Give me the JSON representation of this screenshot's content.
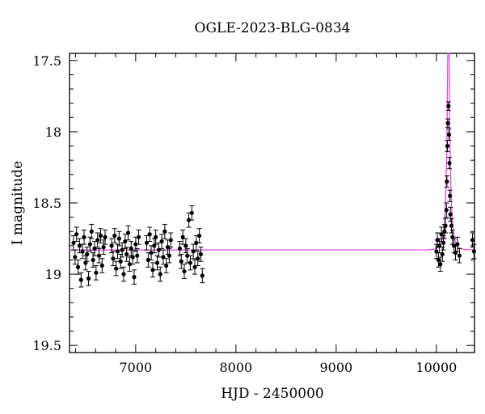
{
  "chart_data": {
    "type": "scatter",
    "title": "OGLE-2023-BLG-0834",
    "xlabel": "HJD - 2450000",
    "ylabel": "I magnitude",
    "xlim": [
      6340,
      10380
    ],
    "ylim": [
      19.55,
      17.45
    ],
    "y_inverted": true,
    "x_ticks": [
      7000,
      8000,
      9000,
      10000
    ],
    "y_ticks": [
      17.5,
      18,
      18.5,
      19,
      19.5
    ],
    "x_tick_labels": [
      "7000",
      "8000",
      "9000",
      "10000"
    ],
    "y_tick_labels": [
      "17.5",
      "18",
      "18.5",
      "19",
      "19.5"
    ],
    "grid": false,
    "colors": {
      "points": "#000000",
      "model": "#e040e0",
      "frame": "#000000"
    },
    "model": {
      "name": "",
      "baseline": 18.83,
      "t0": 10120,
      "u0": 0.06,
      "tE": 40,
      "fs": 0.6
    },
    "series": [
      {
        "name": "",
        "style": "points-with-errorbars",
        "points": [
          [
            6380,
            18.78,
            0.05
          ],
          [
            6395,
            18.88,
            0.05
          ],
          [
            6410,
            18.72,
            0.05
          ],
          [
            6425,
            18.95,
            0.05
          ],
          [
            6440,
            18.8,
            0.05
          ],
          [
            6455,
            19.04,
            0.05
          ],
          [
            6470,
            18.84,
            0.05
          ],
          [
            6485,
            18.74,
            0.05
          ],
          [
            6500,
            18.92,
            0.05
          ],
          [
            6515,
            18.86,
            0.05
          ],
          [
            6530,
            19.03,
            0.05
          ],
          [
            6545,
            18.79,
            0.05
          ],
          [
            6560,
            18.7,
            0.05
          ],
          [
            6575,
            18.9,
            0.05
          ],
          [
            6590,
            18.82,
            0.05
          ],
          [
            6605,
            18.99,
            0.05
          ],
          [
            6620,
            18.76,
            0.05
          ],
          [
            6635,
            18.87,
            0.05
          ],
          [
            6650,
            18.73,
            0.05
          ],
          [
            6665,
            18.94,
            0.05
          ],
          [
            6680,
            18.81,
            0.05
          ],
          [
            6695,
            18.74,
            0.05
          ],
          [
            6760,
            18.8,
            0.05
          ],
          [
            6775,
            18.89,
            0.05
          ],
          [
            6790,
            18.73,
            0.05
          ],
          [
            6805,
            18.96,
            0.05
          ],
          [
            6820,
            18.84,
            0.05
          ],
          [
            6835,
            18.75,
            0.05
          ],
          [
            6850,
            18.91,
            0.05
          ],
          [
            6865,
            18.83,
            0.05
          ],
          [
            6880,
            19.0,
            0.05
          ],
          [
            6895,
            18.77,
            0.05
          ],
          [
            6910,
            18.86,
            0.05
          ],
          [
            6925,
            18.71,
            0.05
          ],
          [
            6940,
            18.93,
            0.05
          ],
          [
            6955,
            18.82,
            0.05
          ],
          [
            6970,
            18.88,
            0.05
          ],
          [
            6985,
            19.02,
            0.05
          ],
          [
            7000,
            18.79,
            0.05
          ],
          [
            7015,
            18.87,
            0.05
          ],
          [
            7030,
            18.74,
            0.05
          ],
          [
            7110,
            18.78,
            0.05
          ],
          [
            7125,
            18.9,
            0.05
          ],
          [
            7140,
            18.72,
            0.05
          ],
          [
            7155,
            18.85,
            0.05
          ],
          [
            7170,
            18.97,
            0.05
          ],
          [
            7185,
            18.8,
            0.05
          ],
          [
            7200,
            18.74,
            0.05
          ],
          [
            7215,
            18.92,
            0.05
          ],
          [
            7230,
            18.83,
            0.05
          ],
          [
            7245,
            19.0,
            0.05
          ],
          [
            7260,
            18.77,
            0.05
          ],
          [
            7275,
            18.88,
            0.05
          ],
          [
            7290,
            18.7,
            0.05
          ],
          [
            7305,
            18.94,
            0.05
          ],
          [
            7320,
            18.81,
            0.05
          ],
          [
            7335,
            18.87,
            0.05
          ],
          [
            7350,
            18.76,
            0.05
          ],
          [
            7440,
            18.82,
            0.05
          ],
          [
            7455,
            18.91,
            0.05
          ],
          [
            7470,
            18.74,
            0.05
          ],
          [
            7485,
            18.98,
            0.05
          ],
          [
            7500,
            18.8,
            0.05
          ],
          [
            7515,
            18.87,
            0.05
          ],
          [
            7530,
            18.62,
            0.05
          ],
          [
            7545,
            18.92,
            0.05
          ],
          [
            7560,
            18.57,
            0.05
          ],
          [
            7575,
            18.84,
            0.05
          ],
          [
            7590,
            18.95,
            0.05
          ],
          [
            7605,
            18.78,
            0.05
          ],
          [
            7620,
            18.89,
            0.05
          ],
          [
            7635,
            18.73,
            0.05
          ],
          [
            7650,
            18.86,
            0.05
          ],
          [
            7665,
            19.01,
            0.05
          ],
          [
            10000,
            18.84,
            0.05
          ],
          [
            10010,
            18.76,
            0.05
          ],
          [
            10020,
            18.9,
            0.05
          ],
          [
            10030,
            18.8,
            0.05
          ],
          [
            10040,
            18.93,
            0.05
          ],
          [
            10050,
            18.72,
            0.05
          ],
          [
            10060,
            18.86,
            0.05
          ],
          [
            10070,
            18.78,
            0.05
          ],
          [
            10080,
            18.7,
            0.05
          ],
          [
            10090,
            18.66,
            0.05
          ],
          [
            10100,
            18.55,
            0.05
          ],
          [
            10105,
            18.35,
            0.04
          ],
          [
            10110,
            18.1,
            0.04
          ],
          [
            10115,
            17.94,
            0.03
          ],
          [
            10120,
            17.82,
            0.03
          ],
          [
            10125,
            18.02,
            0.04
          ],
          [
            10130,
            18.22,
            0.04
          ],
          [
            10135,
            18.45,
            0.04
          ],
          [
            10140,
            18.58,
            0.05
          ],
          [
            10150,
            18.66,
            0.05
          ],
          [
            10160,
            18.74,
            0.05
          ],
          [
            10175,
            18.8,
            0.05
          ],
          [
            10190,
            18.85,
            0.05
          ],
          [
            10210,
            18.79,
            0.05
          ],
          [
            10230,
            18.87,
            0.05
          ],
          [
            10360,
            18.76,
            0.05
          ],
          [
            10375,
            18.84,
            0.05
          ]
        ]
      }
    ]
  }
}
